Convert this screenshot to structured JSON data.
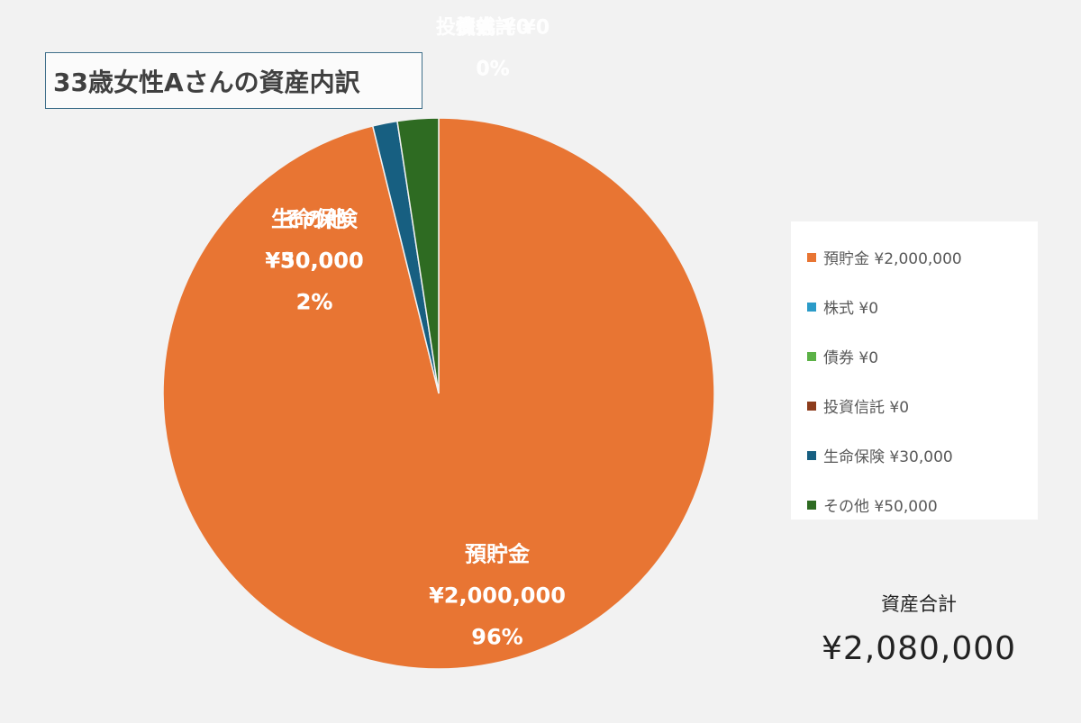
{
  "chart_data": {
    "type": "pie",
    "title": "33歳女性Aさんの資産内訳",
    "categories": [
      "預貯金",
      "株式",
      "債券",
      "投資信託",
      "生命保険",
      "その他"
    ],
    "values": [
      2000000,
      0,
      0,
      0,
      30000,
      50000
    ],
    "percent_labels": [
      "96%",
      "0%",
      "0%",
      "0%",
      "2%",
      "2%"
    ],
    "value_labels": [
      "¥2,000,000",
      "¥0",
      "¥0",
      "¥0",
      "¥30,000",
      "¥50,000"
    ],
    "colors": [
      "#e87533",
      "#2b9bc8",
      "#5bb146",
      "#8c3c1c",
      "#175f81",
      "#2e6b22"
    ],
    "legend_entries": [
      "預貯金 ¥2,000,000",
      "株式 ¥0",
      "債券 ¥0",
      "投資信託 ¥0",
      "生命保険 ¥30,000",
      "その他 ¥50,000"
    ],
    "legend_position": "right"
  },
  "summary": {
    "total_label": "資産合計",
    "total_value": "¥2,080,000"
  }
}
